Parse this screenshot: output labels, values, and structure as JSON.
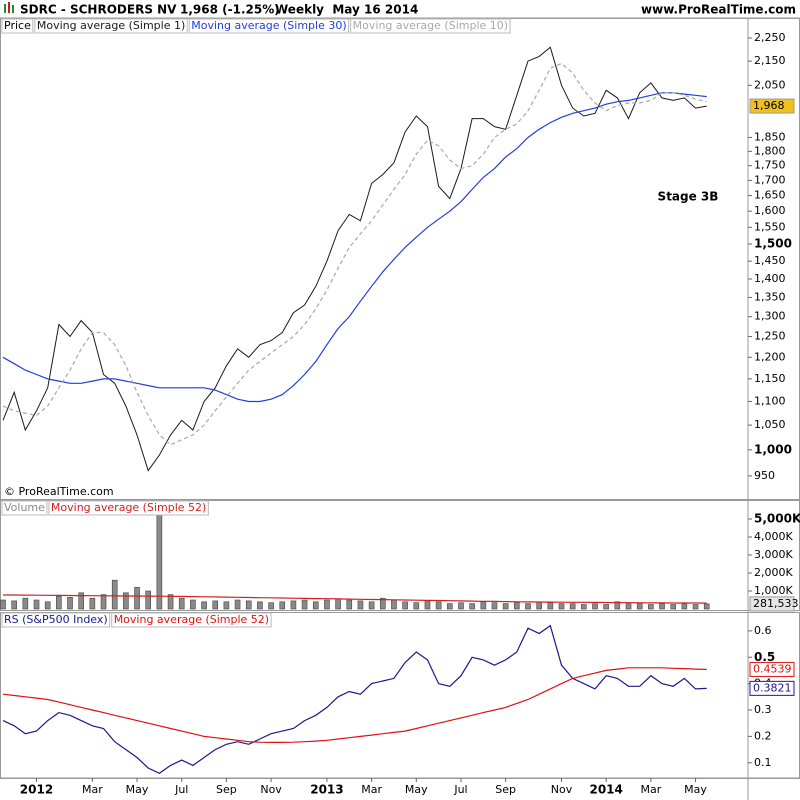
{
  "header": {
    "symbol": "SDRC - SCHRODERS NV",
    "quote": "1,968 (-1.25%)",
    "period": "Weekly  May 16 2014",
    "site": "www.ProRealTime.com"
  },
  "chart_data": [
    {
      "type": "line",
      "log_scale": true,
      "label": "Price",
      "annotation": "Stage 3B",
      "copyright": "© ProRealTime.com",
      "ylim": [
        906,
        2268
      ],
      "yticks": [
        950,
        {
          "value": 1000,
          "label": "1,000"
        },
        {
          "value": 1050,
          "label": "1,050"
        },
        {
          "value": 1100,
          "label": "1,100"
        },
        {
          "value": 1150,
          "label": "1,150"
        },
        {
          "value": 1200,
          "label": "1,200"
        },
        {
          "value": 1250,
          "label": "1,250"
        },
        {
          "value": 1300,
          "label": "1,300"
        },
        {
          "value": 1350,
          "label": "1,350"
        },
        {
          "value": 1400,
          "label": "1,400"
        },
        {
          "value": 1450,
          "label": "1,450"
        },
        {
          "value": 1500,
          "label": "1,500"
        },
        {
          "value": 1550,
          "label": "1,550"
        },
        {
          "value": 1600,
          "label": "1,600"
        },
        {
          "value": 1650,
          "label": "1,650"
        },
        {
          "value": 1700,
          "label": "1,700"
        },
        {
          "value": 1750,
          "label": "1,750"
        },
        {
          "value": 1800,
          "label": "1,800"
        },
        {
          "value": 1850,
          "label": "1,850"
        },
        {
          "value": 2050,
          "label": "2,050"
        },
        {
          "value": 2150,
          "label": "2,150"
        },
        {
          "value": 2250,
          "label": "2,250"
        }
      ],
      "series": [
        {
          "name": "Moving average (Simple 1)",
          "color": "#1a1a1a",
          "last_label": "1,968",
          "tag_fill": "#f2c01e",
          "values": [
            1060,
            1120,
            1040,
            1080,
            1130,
            1280,
            1250,
            1290,
            1260,
            1160,
            1140,
            1090,
            1030,
            960,
            990,
            1030,
            1060,
            1040,
            1100,
            1130,
            1180,
            1220,
            1200,
            1230,
            1240,
            1260,
            1310,
            1330,
            1380,
            1450,
            1540,
            1590,
            1570,
            1690,
            1720,
            1760,
            1870,
            1930,
            1890,
            1680,
            1640,
            1740,
            1920,
            1920,
            1890,
            1880,
            2010,
            2150,
            2170,
            2210,
            2050,
            1960,
            1930,
            1940,
            2030,
            2000,
            1920,
            2020,
            2060,
            2000,
            1990,
            2000,
            1960,
            1968
          ]
        },
        {
          "name": "Moving average (Simple 30)",
          "color": "#1f3fe0",
          "values": [
            1200,
            1185,
            1170,
            1160,
            1150,
            1145,
            1140,
            1140,
            1145,
            1150,
            1150,
            1145,
            1140,
            1135,
            1130,
            1130,
            1130,
            1130,
            1130,
            1125,
            1115,
            1105,
            1100,
            1100,
            1105,
            1115,
            1135,
            1160,
            1190,
            1230,
            1270,
            1300,
            1340,
            1380,
            1420,
            1455,
            1490,
            1520,
            1550,
            1575,
            1600,
            1630,
            1670,
            1710,
            1740,
            1780,
            1810,
            1850,
            1880,
            1905,
            1925,
            1940,
            1950,
            1960,
            1975,
            1985,
            1990,
            2000,
            2010,
            2020,
            2020,
            2015,
            2010,
            2005
          ]
        },
        {
          "name": "Moving average (Simple 10)",
          "color": "#a8a8a8",
          "dashed": true,
          "values": [
            1090,
            1080,
            1075,
            1070,
            1090,
            1130,
            1170,
            1220,
            1260,
            1260,
            1230,
            1180,
            1120,
            1070,
            1030,
            1010,
            1020,
            1030,
            1050,
            1080,
            1110,
            1140,
            1170,
            1190,
            1210,
            1230,
            1250,
            1280,
            1320,
            1370,
            1430,
            1490,
            1530,
            1570,
            1620,
            1670,
            1720,
            1790,
            1840,
            1820,
            1770,
            1740,
            1750,
            1790,
            1850,
            1880,
            1900,
            1950,
            2030,
            2120,
            2140,
            2100,
            2030,
            1980,
            1950,
            1970,
            1980,
            1980,
            1990,
            2020,
            2020,
            2010,
            1995,
            1985
          ]
        }
      ]
    },
    {
      "type": "bar",
      "ylim": [
        0,
        6000
      ],
      "yticks": [
        {
          "value": 1000,
          "label": "1,000K"
        },
        {
          "value": 2000,
          "label": "2,000K"
        },
        {
          "value": 3000,
          "label": "3,000K"
        },
        {
          "value": 4000,
          "label": "4,000K"
        },
        {
          "value": 5000,
          "label": "5,000K"
        }
      ],
      "series": [
        {
          "name": "Volume",
          "color": "#8a8a8a",
          "last_label": "281,533",
          "tag_fill": "#e6e6e6",
          "values": [
            500,
            450,
            600,
            500,
            400,
            700,
            650,
            900,
            600,
            800,
            1600,
            900,
            1200,
            1000,
            6000,
            800,
            600,
            500,
            400,
            450,
            400,
            500,
            450,
            400,
            350,
            400,
            450,
            500,
            400,
            500,
            550,
            500,
            450,
            400,
            600,
            500,
            400,
            350,
            450,
            400,
            300,
            350,
            300,
            400,
            350,
            300,
            350,
            300,
            400,
            350,
            300,
            300,
            250,
            300,
            250,
            400,
            300,
            300,
            250,
            300,
            250,
            300,
            250,
            281.533
          ]
        },
        {
          "name": "Moving average (Simple 52)",
          "color": "#d42020",
          "type": "line",
          "values": [
            780,
            775,
            770,
            765,
            760,
            755,
            750,
            745,
            740,
            735,
            730,
            725,
            720,
            715,
            710,
            705,
            700,
            690,
            680,
            670,
            660,
            650,
            640,
            630,
            620,
            610,
            600,
            590,
            580,
            570,
            560,
            550,
            540,
            530,
            520,
            510,
            500,
            490,
            480,
            470,
            460,
            450,
            440,
            430,
            420,
            410,
            400,
            395,
            390,
            385,
            380,
            375,
            370,
            365,
            360,
            355,
            350,
            345,
            340,
            338,
            336,
            334,
            332,
            330
          ]
        }
      ]
    },
    {
      "type": "line",
      "ylim": [
        0.046,
        0.664
      ],
      "yticks": [
        0.1,
        0.2,
        0.3,
        0.4,
        0.5,
        0.6
      ],
      "categories": [
        null,
        null,
        null,
        "2012",
        null,
        null,
        null,
        null,
        "Mar",
        null,
        null,
        null,
        "May",
        null,
        null,
        null,
        "Jul",
        null,
        null,
        null,
        "Sep",
        null,
        null,
        null,
        "Nov",
        null,
        null,
        null,
        null,
        "2013",
        null,
        null,
        null,
        "Mar",
        null,
        null,
        null,
        "May",
        null,
        null,
        null,
        "Jul",
        null,
        null,
        null,
        "Sep",
        null,
        null,
        null,
        null,
        "Nov",
        null,
        null,
        null,
        "2014",
        null,
        null,
        null,
        "Mar",
        null,
        null,
        null,
        "May",
        null
      ],
      "series": [
        {
          "name": "RS (S&P500 Index)",
          "color": "#1a1a8c",
          "tag": true,
          "values": [
            0.26,
            0.24,
            0.21,
            0.22,
            0.26,
            0.29,
            0.28,
            0.26,
            0.24,
            0.23,
            0.18,
            0.15,
            0.12,
            0.08,
            0.06,
            0.09,
            0.11,
            0.09,
            0.12,
            0.15,
            0.17,
            0.18,
            0.17,
            0.19,
            0.21,
            0.22,
            0.23,
            0.26,
            0.28,
            0.31,
            0.35,
            0.37,
            0.36,
            0.4,
            0.41,
            0.42,
            0.48,
            0.52,
            0.49,
            0.4,
            0.39,
            0.43,
            0.5,
            0.49,
            0.47,
            0.49,
            0.52,
            0.61,
            0.59,
            0.62,
            0.47,
            0.42,
            0.4,
            0.38,
            0.43,
            0.42,
            0.39,
            0.39,
            0.43,
            0.4,
            0.39,
            0.42,
            0.38,
            0.3821
          ]
        },
        {
          "name": "Moving average (Simple 52)",
          "color": "#e01010",
          "tag": true,
          "values": [
            0.36,
            0.355,
            0.35,
            0.345,
            0.34,
            0.33,
            0.32,
            0.31,
            0.3,
            0.29,
            0.28,
            0.27,
            0.26,
            0.25,
            0.24,
            0.23,
            0.22,
            0.21,
            0.2,
            0.195,
            0.19,
            0.185,
            0.18,
            0.178,
            0.177,
            0.177,
            0.178,
            0.18,
            0.182,
            0.185,
            0.19,
            0.195,
            0.2,
            0.205,
            0.21,
            0.215,
            0.22,
            0.23,
            0.24,
            0.25,
            0.26,
            0.27,
            0.28,
            0.29,
            0.3,
            0.31,
            0.325,
            0.34,
            0.36,
            0.38,
            0.4,
            0.42,
            0.43,
            0.44,
            0.45,
            0.455,
            0.46,
            0.46,
            0.46,
            0.46,
            0.458,
            0.457,
            0.455,
            0.4539
          ]
        }
      ]
    }
  ]
}
